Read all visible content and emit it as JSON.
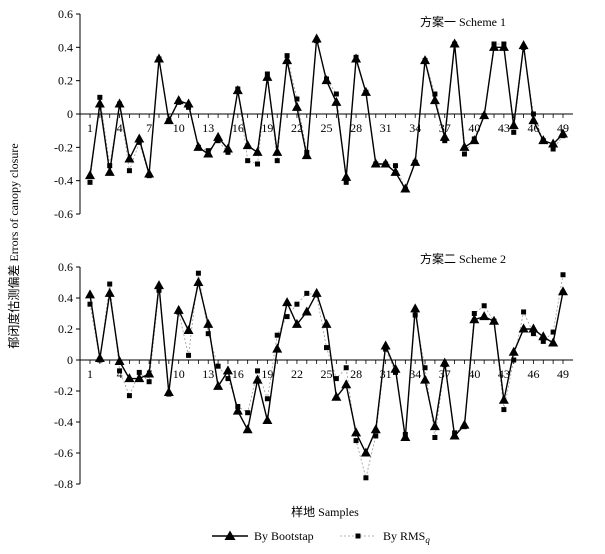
{
  "figure": {
    "ylabel": "郁闭度估测偏差 Errors of canopy closure",
    "xlabel": "样地 Samples"
  },
  "legend": {
    "bootstrap": "By Bootstap",
    "rms_prefix": "By RMS",
    "rms_sub": "q"
  },
  "chart_data": [
    {
      "type": "line",
      "title": "方案一 Scheme 1",
      "x": [
        1,
        2,
        3,
        4,
        5,
        6,
        7,
        8,
        9,
        10,
        11,
        12,
        13,
        14,
        15,
        16,
        17,
        18,
        19,
        20,
        21,
        22,
        23,
        24,
        25,
        26,
        27,
        28,
        29,
        30,
        31,
        32,
        33,
        34,
        35,
        36,
        37,
        38,
        39,
        40,
        41,
        42,
        43,
        44,
        45,
        46,
        47,
        48,
        49
      ],
      "xticks": [
        1,
        4,
        7,
        10,
        13,
        16,
        19,
        22,
        25,
        28,
        31,
        34,
        37,
        40,
        43,
        46,
        49
      ],
      "yticks": [
        -0.6,
        -0.4,
        -0.2,
        0,
        0.2,
        0.4,
        0.6
      ],
      "ylim": [
        -0.6,
        0.6
      ],
      "series": [
        {
          "name": "By Bootstap",
          "values": [
            -0.37,
            0.06,
            -0.35,
            0.06,
            -0.27,
            -0.15,
            -0.36,
            0.33,
            -0.04,
            0.08,
            0.06,
            -0.2,
            -0.24,
            -0.14,
            -0.21,
            0.14,
            -0.19,
            -0.23,
            0.22,
            -0.23,
            0.32,
            0.04,
            -0.25,
            0.45,
            0.2,
            0.07,
            -0.38,
            0.33,
            0.13,
            -0.3,
            -0.3,
            -0.35,
            -0.45,
            -0.29,
            0.32,
            0.08,
            -0.14,
            0.42,
            -0.2,
            -0.16,
            -0.01,
            0.4,
            0.4,
            -0.07,
            0.41,
            -0.04,
            -0.16,
            -0.18,
            -0.12
          ]
        },
        {
          "name": "By RMSq",
          "values": [
            -0.41,
            0.1,
            -0.31,
            0.06,
            -0.34,
            -0.17,
            -0.37,
            0.33,
            -0.04,
            0.07,
            0.04,
            -0.2,
            -0.22,
            -0.16,
            -0.23,
            0.15,
            -0.28,
            -0.3,
            0.24,
            -0.28,
            0.35,
            0.09,
            -0.23,
            0.44,
            0.21,
            0.12,
            -0.41,
            0.34,
            0.13,
            -0.3,
            -0.3,
            -0.31,
            -0.45,
            -0.29,
            0.32,
            0.12,
            -0.16,
            0.42,
            -0.24,
            -0.15,
            -0.01,
            0.42,
            0.42,
            -0.11,
            0.4,
            0,
            -0.16,
            -0.21,
            -0.13
          ]
        }
      ]
    },
    {
      "type": "line",
      "title": "方案二 Scheme 2",
      "x": [
        1,
        2,
        3,
        4,
        5,
        6,
        7,
        8,
        9,
        10,
        11,
        12,
        13,
        14,
        15,
        16,
        17,
        18,
        19,
        20,
        21,
        22,
        23,
        24,
        25,
        26,
        27,
        28,
        29,
        30,
        31,
        32,
        33,
        34,
        35,
        36,
        37,
        38,
        39,
        40,
        41,
        42,
        43,
        44,
        45,
        46,
        47,
        48,
        49
      ],
      "xticks": [
        1,
        4,
        7,
        10,
        13,
        16,
        19,
        22,
        25,
        28,
        31,
        34,
        37,
        40,
        43,
        46,
        49
      ],
      "yticks": [
        -0.8,
        -0.6,
        -0.4,
        -0.2,
        0,
        0.2,
        0.4,
        0.6
      ],
      "ylim": [
        -0.8,
        0.6
      ],
      "series": [
        {
          "name": "By Bootstap",
          "values": [
            0.42,
            0.01,
            0.43,
            -0.01,
            -0.12,
            -0.12,
            -0.09,
            0.48,
            -0.21,
            0.32,
            0.19,
            0.5,
            0.23,
            -0.17,
            -0.07,
            -0.33,
            -0.45,
            -0.13,
            -0.39,
            0.07,
            0.37,
            0.23,
            0.31,
            0.43,
            0.23,
            -0.24,
            -0.16,
            -0.47,
            -0.6,
            -0.45,
            0.09,
            -0.06,
            -0.5,
            0.33,
            -0.13,
            -0.43,
            -0.02,
            -0.49,
            -0.42,
            0.26,
            0.28,
            0.25,
            -0.26,
            0.05,
            0.2,
            0.2,
            0.15,
            0.11,
            0.44
          ]
        },
        {
          "name": "By RMSq",
          "values": [
            0.36,
            0.0,
            0.49,
            -0.07,
            -0.23,
            -0.08,
            -0.14,
            0.45,
            -0.22,
            0.31,
            0.03,
            0.56,
            0.17,
            -0.04,
            -0.12,
            -0.3,
            -0.34,
            -0.07,
            -0.25,
            0.16,
            0.28,
            0.36,
            0.43,
            0.42,
            0.08,
            -0.12,
            -0.05,
            -0.52,
            -0.76,
            -0.49,
            0.07,
            -0.08,
            -0.48,
            0.29,
            -0.05,
            -0.5,
            -0.03,
            -0.47,
            -0.43,
            0.3,
            0.35,
            0.25,
            -0.32,
            0.0,
            0.31,
            0.17,
            0.12,
            0.18,
            0.55
          ]
        }
      ]
    }
  ]
}
